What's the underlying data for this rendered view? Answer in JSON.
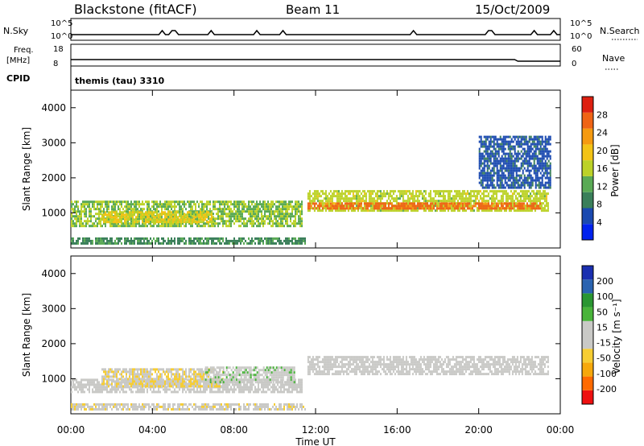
{
  "header": {
    "title": "Blackstone (fitACF)",
    "beam": "Beam 11",
    "date": "15/Oct/2009"
  },
  "small_panels": {
    "nsky_label": "N.Sky",
    "nsky_ticks": [
      "10^5",
      "10^0"
    ],
    "nsearch_label": "N.Search",
    "nsearch_ticks": [
      "10^5",
      "10^0"
    ],
    "freq_label_1": "Freq.",
    "freq_label_2": "[MHz]",
    "freq_ticks": [
      "18",
      "8"
    ],
    "nave_label": "Nave",
    "nave_ticks": [
      "60",
      "0"
    ],
    "cpid_label": "CPID",
    "cpid_text": "themis (tau) 3310"
  },
  "x_axis": {
    "label": "Time UT",
    "ticks": [
      "00:00",
      "04:00",
      "08:00",
      "12:00",
      "16:00",
      "20:00",
      "00:00"
    ]
  },
  "colors": {
    "power_scale": [
      "#0022ee",
      "#1a49b0",
      "#3a7f5a",
      "#5aaa55",
      "#bcd228",
      "#f3c316",
      "#f59a10",
      "#ef6415",
      "#dd2010"
    ],
    "velocity_scale": [
      "#ee1010",
      "#ff6a00",
      "#f6a80c",
      "#f6cd33",
      "#c9c9c6",
      "#c9c9c6",
      "#49b43a",
      "#2a9632",
      "#2a63b0",
      "#1a2fb0"
    ]
  },
  "chart_data": [
    {
      "type": "heatmap",
      "title": "",
      "xlabel": "Time UT",
      "ylabel": "Slant Range [km]",
      "xlim": [
        0,
        24
      ],
      "ylim": [
        0,
        4500
      ],
      "y_ticks": [
        "1000",
        "2000",
        "3000",
        "4000"
      ],
      "colorbar": {
        "label": "Power [dB]",
        "ticks": [
          "4",
          "8",
          "12",
          "16",
          "20",
          "24",
          "28"
        ],
        "range": [
          0,
          32
        ]
      },
      "regions": [
        {
          "t": [
            0.0,
            11.3
          ],
          "range": [
            650,
            1350
          ],
          "value": 14
        },
        {
          "t": [
            1.5,
            7.0
          ],
          "range": [
            750,
            1050
          ],
          "value": 18
        },
        {
          "t": [
            11.6,
            23.4
          ],
          "range": [
            1050,
            1650
          ],
          "value": 16
        },
        {
          "t": [
            11.6,
            23.0
          ],
          "range": [
            1100,
            1300
          ],
          "value": 26
        },
        {
          "t": [
            20.0,
            23.5
          ],
          "range": [
            1700,
            3200
          ],
          "value": 6
        },
        {
          "t": [
            0.0,
            11.5
          ],
          "range": [
            150,
            300
          ],
          "value": 10
        }
      ]
    },
    {
      "type": "heatmap",
      "title": "",
      "xlabel": "Time UT",
      "ylabel": "Slant Range [km]",
      "xlim": [
        0,
        24
      ],
      "ylim": [
        0,
        4500
      ],
      "y_ticks": [
        "1000",
        "2000",
        "3000",
        "4000"
      ],
      "colorbar": {
        "label": "Velocity [m s⁻¹]",
        "ticks": [
          "200",
          "100",
          "50",
          "15",
          "-15",
          "-50",
          "-100",
          "-200"
        ],
        "range": [
          -250,
          250
        ]
      },
      "regions": [
        {
          "t": [
            0.0,
            11.3
          ],
          "range": [
            650,
            1000
          ],
          "value": -10
        },
        {
          "t": [
            1.5,
            7.5
          ],
          "range": [
            800,
            1300
          ],
          "value": -40
        },
        {
          "t": [
            6.5,
            11.0
          ],
          "range": [
            900,
            1350
          ],
          "value": 30
        },
        {
          "t": [
            11.6,
            23.4
          ],
          "range": [
            1100,
            1650
          ],
          "value": 0
        },
        {
          "t": [
            0.0,
            11.5
          ],
          "range": [
            150,
            300
          ],
          "value": -30
        }
      ]
    }
  ]
}
